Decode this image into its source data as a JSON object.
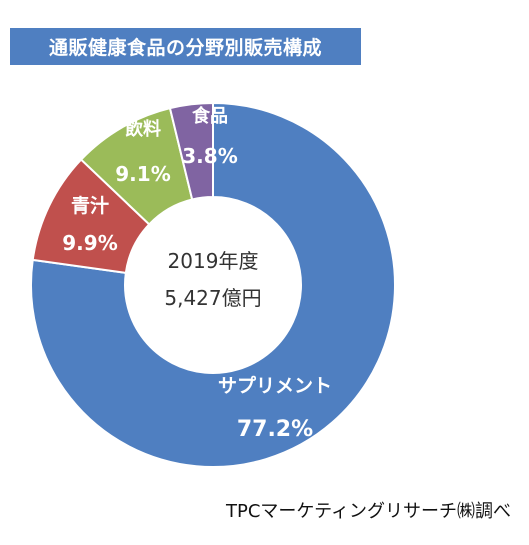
{
  "chart_data": {
    "type": "pie",
    "title": "通販健康食品の分野別販売構成",
    "center_text": [
      "2019年度",
      "5,427億円"
    ],
    "source": "TPCマーケティングリサーチ㈱調べ",
    "slices": [
      {
        "label": "サプリメント",
        "value": 77.2,
        "value_label": "77.2%",
        "color": "#4f7fc1"
      },
      {
        "label": "青汁",
        "value": 9.9,
        "value_label": "9.9%",
        "color": "#c0504d"
      },
      {
        "label": "飲料",
        "value": 9.1,
        "value_label": "9.1%",
        "color": "#9bbb59"
      },
      {
        "label": "食品",
        "value": 3.8,
        "value_label": "3.8%",
        "color": "#8064a2"
      }
    ]
  }
}
